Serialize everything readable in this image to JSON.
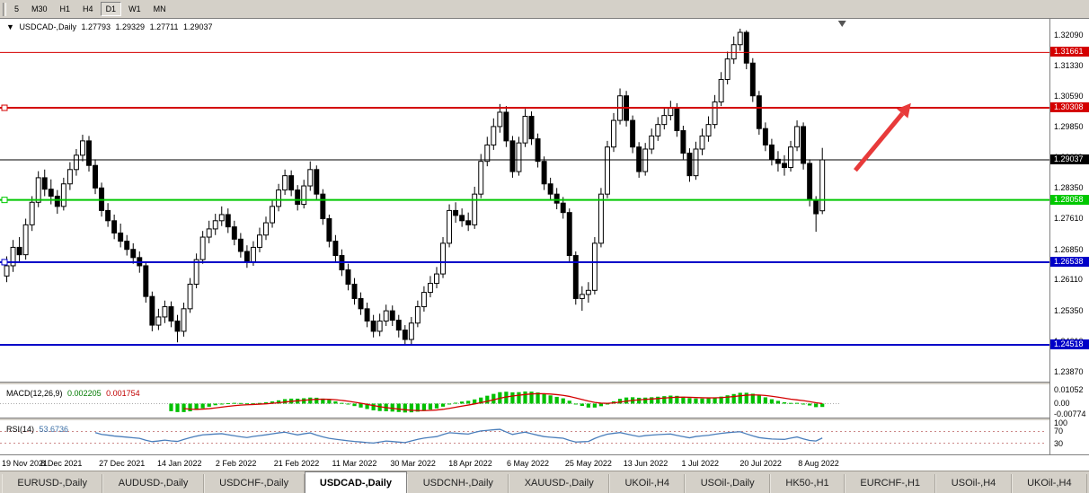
{
  "toolbar": {
    "timeframes": [
      "5",
      "M30",
      "H1",
      "H4",
      "D1",
      "W1",
      "MN"
    ],
    "active": "D1"
  },
  "header": {
    "dropdown_icon": "▼",
    "title": "USDCAD-,Daily",
    "open": "1.27793",
    "high": "1.29329",
    "low": "1.27711",
    "close": "1.29037"
  },
  "tabs": {
    "active": "USDCAD-,Daily",
    "items": [
      "EURUSD-,Daily",
      "AUDUSD-,Daily",
      "USDCHF-,Daily",
      "USDCAD-,Daily",
      "USDCNH-,Daily",
      "XAUUSD-,Daily",
      "UKOil-,H4",
      "USOil-,Daily",
      "HK50-,H1",
      "EURCHF-,H1",
      "USOil-,H4",
      "UKOil-,H4"
    ]
  },
  "colors": {
    "resistance_red": "#d40000",
    "support_green": "#00c800",
    "support_blue": "#0000c8",
    "current_price_black": "#000000",
    "arrow_red": "#e83a3a",
    "macd_histogram": "#00c000",
    "macd_signal": "#d40000",
    "rsi_line": "#4a7ebb"
  },
  "chart_data": {
    "type": "candlestick",
    "symbol": "USDCAD-",
    "timeframe": "Daily",
    "title": "USDCAD-,Daily",
    "ylim": [
      1.2362,
      1.3248
    ],
    "price_axis_labels": [
      "1.32090",
      "1.31330",
      "1.30590",
      "1.29850",
      "1.29110",
      "1.28350",
      "1.27610",
      "1.26850",
      "1.26110",
      "1.25350",
      "1.24610",
      "1.23870"
    ],
    "x_dates": [
      "19 Nov 2021",
      "8 Dec 2021",
      "27 Dec 2021",
      "14 Jan 2022",
      "2 Feb 2022",
      "21 Feb 2022",
      "11 Mar 2022",
      "30 Mar 2022",
      "18 Apr 2022",
      "6 May 2022",
      "25 May 2022",
      "13 Jun 2022",
      "1 Jul 2022",
      "20 Jul 2022",
      "8 Aug 2022"
    ],
    "hlines": [
      {
        "price": 1.31661,
        "label": "1.31661",
        "color": "#d40000",
        "width": 1,
        "handles": false
      },
      {
        "price": 1.30308,
        "label": "1.30308",
        "color": "#d40000",
        "width": 2,
        "handles": true
      },
      {
        "price": 1.29037,
        "label": "1.29037",
        "color": "#000000",
        "width": 1,
        "handles": false
      },
      {
        "price": 1.28058,
        "label": "1.28058",
        "color": "#00c800",
        "width": 2,
        "handles": true
      },
      {
        "price": 1.26538,
        "label": "1.26538",
        "color": "#0000c8",
        "width": 2,
        "handles": true
      },
      {
        "price": 1.24518,
        "label": "1.24518",
        "color": "#0000c8",
        "width": 2,
        "handles": false
      }
    ],
    "arrow": {
      "color": "#e83a3a",
      "x1_frac": 0.815,
      "price1": 1.2878,
      "x2_frac": 0.868,
      "price2": 1.3042
    },
    "macd": {
      "label": "MACD(12,26,9)",
      "main_value": "0.002205",
      "signal_value": "0.001754",
      "ylim": [
        -0.0104,
        0.0137
      ],
      "axis_labels": [
        "0.01052",
        "0.00",
        "-0.00774"
      ]
    },
    "rsi": {
      "label": "RSI(14)",
      "value": "53.6736",
      "levels": [
        70,
        30
      ],
      "axis_labels": [
        "100",
        "70",
        "30"
      ]
    },
    "candles": [
      [
        1.262,
        1.2668,
        1.2605,
        1.2645
      ],
      [
        1.2645,
        1.2708,
        1.263,
        1.269
      ],
      [
        1.269,
        1.2715,
        1.2656,
        1.2672
      ],
      [
        1.2672,
        1.276,
        1.266,
        1.2745
      ],
      [
        1.2745,
        1.2815,
        1.273,
        1.28
      ],
      [
        1.28,
        1.2876,
        1.2788,
        1.286
      ],
      [
        1.286,
        1.288,
        1.2815,
        1.2832
      ],
      [
        1.2832,
        1.2856,
        1.2795,
        1.2815
      ],
      [
        1.2815,
        1.283,
        1.2772,
        1.279
      ],
      [
        1.279,
        1.286,
        1.278,
        1.2845
      ],
      [
        1.2845,
        1.2898,
        1.283,
        1.288
      ],
      [
        1.288,
        1.293,
        1.2865,
        1.2915
      ],
      [
        1.2915,
        1.2965,
        1.29,
        1.295
      ],
      [
        1.295,
        1.2962,
        1.2875,
        1.289
      ],
      [
        1.289,
        1.2905,
        1.282,
        1.2835
      ],
      [
        1.2835,
        1.2848,
        1.2765,
        1.278
      ],
      [
        1.278,
        1.2798,
        1.274,
        1.2755
      ],
      [
        1.2755,
        1.277,
        1.271,
        1.2725
      ],
      [
        1.2725,
        1.2748,
        1.269,
        1.2705
      ],
      [
        1.2705,
        1.272,
        1.267,
        1.2685
      ],
      [
        1.2685,
        1.27,
        1.265,
        1.2665
      ],
      [
        1.2665,
        1.268,
        1.2628,
        1.2645
      ],
      [
        1.2645,
        1.2655,
        1.2555,
        1.257
      ],
      [
        1.257,
        1.2582,
        1.2485,
        1.25
      ],
      [
        1.25,
        1.254,
        1.2488,
        1.252
      ],
      [
        1.252,
        1.256,
        1.2505,
        1.2545
      ],
      [
        1.2545,
        1.2558,
        1.2495,
        1.251
      ],
      [
        1.251,
        1.2525,
        1.2458,
        1.2485
      ],
      [
        1.2485,
        1.2555,
        1.2472,
        1.254
      ],
      [
        1.254,
        1.2615,
        1.253,
        1.26
      ],
      [
        1.26,
        1.2675,
        1.259,
        1.266
      ],
      [
        1.266,
        1.273,
        1.265,
        1.2715
      ],
      [
        1.2715,
        1.2755,
        1.27,
        1.2735
      ],
      [
        1.2735,
        1.2772,
        1.272,
        1.2755
      ],
      [
        1.2755,
        1.279,
        1.2742,
        1.277
      ],
      [
        1.277,
        1.2785,
        1.2725,
        1.274
      ],
      [
        1.274,
        1.2755,
        1.2695,
        1.271
      ],
      [
        1.271,
        1.2725,
        1.2665,
        1.268
      ],
      [
        1.268,
        1.2695,
        1.264,
        1.2655
      ],
      [
        1.2655,
        1.2705,
        1.2645,
        1.269
      ],
      [
        1.269,
        1.2738,
        1.2678,
        1.272
      ],
      [
        1.272,
        1.2765,
        1.2708,
        1.275
      ],
      [
        1.275,
        1.2805,
        1.2738,
        1.279
      ],
      [
        1.279,
        1.2845,
        1.2778,
        1.283
      ],
      [
        1.283,
        1.288,
        1.2818,
        1.2865
      ],
      [
        1.2865,
        1.2878,
        1.2815,
        1.283
      ],
      [
        1.283,
        1.2842,
        1.278,
        1.2795
      ],
      [
        1.2795,
        1.2855,
        1.2785,
        1.284
      ],
      [
        1.284,
        1.29,
        1.2828,
        1.288
      ],
      [
        1.288,
        1.289,
        1.2805,
        1.282
      ],
      [
        1.282,
        1.2832,
        1.2745,
        1.276
      ],
      [
        1.276,
        1.277,
        1.269,
        1.2705
      ],
      [
        1.2705,
        1.272,
        1.2655,
        1.267
      ],
      [
        1.267,
        1.2685,
        1.262,
        1.2635
      ],
      [
        1.2635,
        1.265,
        1.2585,
        1.26
      ],
      [
        1.26,
        1.2615,
        1.255,
        1.2565
      ],
      [
        1.2565,
        1.258,
        1.2525,
        1.254
      ],
      [
        1.254,
        1.2555,
        1.2495,
        1.251
      ],
      [
        1.251,
        1.2525,
        1.247,
        1.2485
      ],
      [
        1.2485,
        1.2528,
        1.2473,
        1.251
      ],
      [
        1.251,
        1.255,
        1.2498,
        1.2535
      ],
      [
        1.2535,
        1.2548,
        1.2498,
        1.2512
      ],
      [
        1.2512,
        1.2525,
        1.247,
        1.2488
      ],
      [
        1.2488,
        1.25,
        1.2452,
        1.2465
      ],
      [
        1.2465,
        1.252,
        1.2454,
        1.2505
      ],
      [
        1.2505,
        1.256,
        1.2495,
        1.2545
      ],
      [
        1.2545,
        1.2595,
        1.2533,
        1.258
      ],
      [
        1.258,
        1.262,
        1.2568,
        1.2602
      ],
      [
        1.2602,
        1.2642,
        1.259,
        1.2625
      ],
      [
        1.2625,
        1.2715,
        1.2615,
        1.27
      ],
      [
        1.27,
        1.2795,
        1.269,
        1.278
      ],
      [
        1.278,
        1.28,
        1.275,
        1.2768
      ],
      [
        1.2768,
        1.2785,
        1.274,
        1.2755
      ],
      [
        1.2755,
        1.2775,
        1.273,
        1.2745
      ],
      [
        1.2745,
        1.2838,
        1.2735,
        1.282
      ],
      [
        1.282,
        1.2918,
        1.281,
        1.29
      ],
      [
        1.29,
        1.296,
        1.2888,
        1.294
      ],
      [
        1.294,
        1.3005,
        1.2928,
        1.2985
      ],
      [
        1.2985,
        1.304,
        1.297,
        1.302
      ],
      [
        1.302,
        1.3035,
        1.2935,
        1.295
      ],
      [
        1.295,
        1.2962,
        1.286,
        1.2875
      ],
      [
        1.2875,
        1.296,
        1.2865,
        1.2945
      ],
      [
        1.2945,
        1.3028,
        1.2935,
        1.301
      ],
      [
        1.301,
        1.3022,
        1.294,
        1.2955
      ],
      [
        1.2955,
        1.2968,
        1.2885,
        1.29
      ],
      [
        1.29,
        1.2912,
        1.283,
        1.2845
      ],
      [
        1.2845,
        1.286,
        1.2805,
        1.282
      ],
      [
        1.282,
        1.2835,
        1.2783,
        1.2798
      ],
      [
        1.2798,
        1.2813,
        1.276,
        1.2775
      ],
      [
        1.2775,
        1.2785,
        1.2655,
        1.267
      ],
      [
        1.267,
        1.268,
        1.255,
        1.2565
      ],
      [
        1.2565,
        1.2595,
        1.2535,
        1.2575
      ],
      [
        1.2575,
        1.2605,
        1.2555,
        1.2585
      ],
      [
        1.2585,
        1.2715,
        1.2575,
        1.27
      ],
      [
        1.27,
        1.2835,
        1.269,
        1.282
      ],
      [
        1.282,
        1.295,
        1.281,
        1.2935
      ],
      [
        1.2935,
        1.3018,
        1.2923,
        1.3
      ],
      [
        1.3,
        1.3078,
        1.299,
        1.306
      ],
      [
        1.306,
        1.3072,
        1.2985,
        1.3
      ],
      [
        1.3,
        1.3012,
        1.292,
        1.2935
      ],
      [
        1.2935,
        1.2947,
        1.286,
        1.2875
      ],
      [
        1.2875,
        1.2945,
        1.2865,
        1.293
      ],
      [
        1.293,
        1.298,
        1.2918,
        1.2962
      ],
      [
        1.2962,
        1.3008,
        1.295,
        1.299
      ],
      [
        1.299,
        1.303,
        1.2978,
        1.3012
      ],
      [
        1.3012,
        1.3048,
        1.3,
        1.303
      ],
      [
        1.303,
        1.3042,
        1.296,
        1.2975
      ],
      [
        1.2975,
        1.2987,
        1.2905,
        1.292
      ],
      [
        1.292,
        1.2932,
        1.285,
        1.2865
      ],
      [
        1.2865,
        1.2948,
        1.2855,
        1.293
      ],
      [
        1.293,
        1.298,
        1.2915,
        1.2962
      ],
      [
        1.2962,
        1.301,
        1.2948,
        1.299
      ],
      [
        1.299,
        1.3062,
        1.298,
        1.3045
      ],
      [
        1.3045,
        1.3118,
        1.3035,
        1.31
      ],
      [
        1.31,
        1.3168,
        1.3088,
        1.315
      ],
      [
        1.315,
        1.3205,
        1.3138,
        1.3185
      ],
      [
        1.3185,
        1.3224,
        1.317,
        1.3215
      ],
      [
        1.3215,
        1.322,
        1.3125,
        1.314
      ],
      [
        1.314,
        1.3152,
        1.3045,
        1.306
      ],
      [
        1.306,
        1.3072,
        1.2965,
        1.298
      ],
      [
        1.298,
        1.2995,
        1.2925,
        1.294
      ],
      [
        1.294,
        1.2955,
        1.289,
        1.2905
      ],
      [
        1.2905,
        1.2925,
        1.2875,
        1.2895
      ],
      [
        1.2895,
        1.2915,
        1.2865,
        1.2885
      ],
      [
        1.2885,
        1.295,
        1.2875,
        1.2935
      ],
      [
        1.2935,
        1.3,
        1.2925,
        1.2985
      ],
      [
        1.2985,
        1.2995,
        1.288,
        1.2895
      ],
      [
        1.2895,
        1.2905,
        1.279,
        1.2805
      ],
      [
        1.2805,
        1.2815,
        1.2728,
        1.2772
      ],
      [
        1.27793,
        1.29329,
        1.27711,
        1.29037
      ]
    ]
  }
}
